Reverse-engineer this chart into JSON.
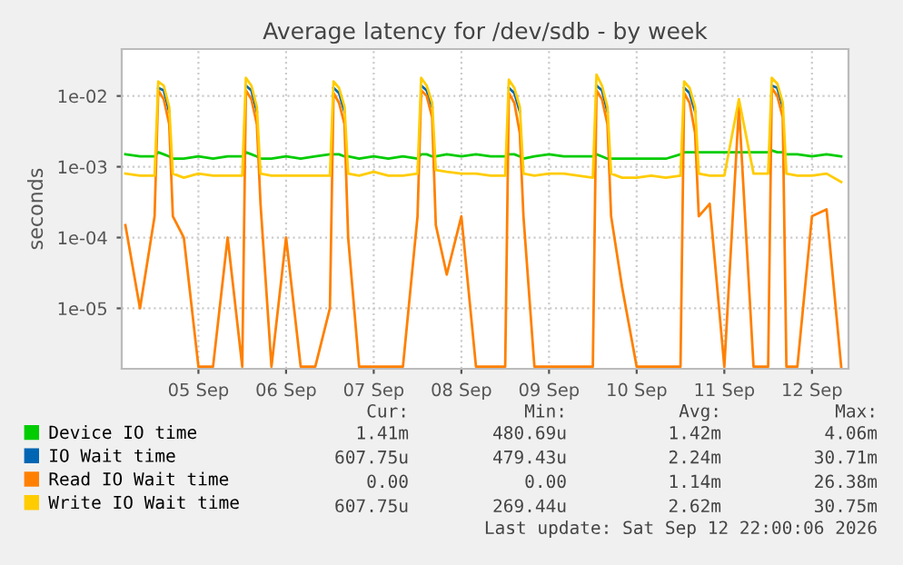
{
  "chart_data": {
    "type": "line",
    "title": "Average latency for /dev/sdb - by week",
    "ylabel": "seconds",
    "log": "y",
    "grid": true,
    "legend": "bottom",
    "marker": "none",
    "line_style": "solid",
    "ylim": [
      1.4e-06,
      0.046
    ],
    "yticks": [
      {
        "value": 1e-05,
        "label": "1e-05"
      },
      {
        "value": 0.0001,
        "label": "1e-04"
      },
      {
        "value": 0.001,
        "label": "1e-03"
      },
      {
        "value": 0.01,
        "label": "1e-02"
      }
    ],
    "xlim": [
      "2026-09-04T15:00",
      "2026-09-12T22:00"
    ],
    "xticks": [
      {
        "value": "2026-09-05T12:00",
        "label": "05 Sep"
      },
      {
        "value": "2026-09-06T12:00",
        "label": "06 Sep"
      },
      {
        "value": "2026-09-07T12:00",
        "label": "07 Sep"
      },
      {
        "value": "2026-09-08T12:00",
        "label": "08 Sep"
      },
      {
        "value": "2026-09-09T12:00",
        "label": "09 Sep"
      },
      {
        "value": "2026-09-10T12:00",
        "label": "10 Sep"
      },
      {
        "value": "2026-09-11T12:00",
        "label": "11 Sep"
      },
      {
        "value": "2026-09-12T12:00",
        "label": "12 Sep"
      }
    ],
    "x": [
      "2026-09-04T16:00",
      "2026-09-04T20:00",
      "2026-09-05T00:00",
      "2026-09-05T01:00",
      "2026-09-05T02:30",
      "2026-09-05T04:00",
      "2026-09-05T05:00",
      "2026-09-05T08:00",
      "2026-09-05T12:00",
      "2026-09-05T16:00",
      "2026-09-05T20:00",
      "2026-09-06T00:00",
      "2026-09-06T01:00",
      "2026-09-06T02:30",
      "2026-09-06T04:00",
      "2026-09-06T05:00",
      "2026-09-06T08:00",
      "2026-09-06T12:00",
      "2026-09-06T16:00",
      "2026-09-06T20:00",
      "2026-09-07T00:00",
      "2026-09-07T01:00",
      "2026-09-07T02:30",
      "2026-09-07T04:00",
      "2026-09-07T05:00",
      "2026-09-07T08:00",
      "2026-09-07T12:00",
      "2026-09-07T16:00",
      "2026-09-07T20:00",
      "2026-09-08T00:00",
      "2026-09-08T01:00",
      "2026-09-08T02:30",
      "2026-09-08T04:00",
      "2026-09-08T05:00",
      "2026-09-08T08:00",
      "2026-09-08T12:00",
      "2026-09-08T16:00",
      "2026-09-08T20:00",
      "2026-09-09T00:00",
      "2026-09-09T01:00",
      "2026-09-09T02:30",
      "2026-09-09T04:00",
      "2026-09-09T05:00",
      "2026-09-09T08:00",
      "2026-09-09T12:00",
      "2026-09-09T16:00",
      "2026-09-09T20:00",
      "2026-09-10T00:00",
      "2026-09-10T01:00",
      "2026-09-10T02:30",
      "2026-09-10T04:00",
      "2026-09-10T05:00",
      "2026-09-10T08:00",
      "2026-09-10T12:00",
      "2026-09-10T16:00",
      "2026-09-10T20:00",
      "2026-09-11T00:00",
      "2026-09-11T01:00",
      "2026-09-11T02:30",
      "2026-09-11T04:00",
      "2026-09-11T05:00",
      "2026-09-11T08:00",
      "2026-09-11T12:00",
      "2026-09-11T16:00",
      "2026-09-11T20:00",
      "2026-09-12T00:00",
      "2026-09-12T01:00",
      "2026-09-12T02:30",
      "2026-09-12T04:00",
      "2026-09-12T05:00",
      "2026-09-12T08:00",
      "2026-09-12T12:00",
      "2026-09-12T16:00",
      "2026-09-12T20:00"
    ],
    "series": [
      {
        "name": "Device IO time",
        "color": "#00cc00",
        "values": [
          0.0015,
          0.0014,
          0.0014,
          0.0016,
          0.0015,
          0.0014,
          0.0013,
          0.0013,
          0.0014,
          0.0013,
          0.0014,
          0.0014,
          0.0016,
          0.0015,
          0.0014,
          0.0013,
          0.0013,
          0.0014,
          0.0013,
          0.0014,
          0.0015,
          0.0015,
          0.0015,
          0.0014,
          0.0014,
          0.0013,
          0.0014,
          0.0013,
          0.0014,
          0.0013,
          0.0015,
          0.0015,
          0.0014,
          0.0014,
          0.0015,
          0.0014,
          0.0015,
          0.0014,
          0.0014,
          0.0015,
          0.0015,
          0.0014,
          0.0013,
          0.0014,
          0.0015,
          0.0014,
          0.0014,
          0.0014,
          0.0015,
          0.0014,
          0.0013,
          0.0013,
          0.0013,
          0.0013,
          0.0013,
          0.0013,
          0.0015,
          0.0016,
          0.0016,
          0.0016,
          0.0016,
          0.0016,
          0.0016,
          0.0016,
          0.0016,
          0.0016,
          0.0017,
          0.0016,
          0.0016,
          0.0015,
          0.0015,
          0.0014,
          0.0015,
          0.0014
        ]
      },
      {
        "name": "IO Wait time",
        "color": "#0066b3",
        "values": [
          null,
          null,
          null,
          0.013,
          0.012,
          0.006,
          null,
          null,
          null,
          null,
          null,
          null,
          0.014,
          0.012,
          0.006,
          null,
          null,
          null,
          null,
          null,
          null,
          0.013,
          0.011,
          0.006,
          null,
          null,
          null,
          null,
          null,
          null,
          0.014,
          0.012,
          0.007,
          null,
          null,
          null,
          null,
          null,
          null,
          0.013,
          0.011,
          0.006,
          null,
          null,
          null,
          null,
          null,
          null,
          0.014,
          0.012,
          0.006,
          null,
          null,
          null,
          null,
          null,
          null,
          0.013,
          0.011,
          0.006,
          null,
          null,
          null,
          null,
          null,
          null,
          0.014,
          0.013,
          0.007,
          null,
          null,
          null,
          null,
          null
        ]
      },
      {
        "name": "Read IO Wait time",
        "color": "#ff8000",
        "values": [
          0.00015,
          1e-05,
          0.0002,
          0.012,
          0.009,
          0.004,
          0.0002,
          0.0001,
          1.5e-06,
          1.5e-06,
          0.0001,
          1.5e-06,
          0.012,
          0.009,
          0.004,
          0.0003,
          1.5e-06,
          0.0001,
          1.5e-06,
          1.5e-06,
          1e-05,
          0.011,
          0.008,
          0.004,
          0.0001,
          1.5e-06,
          1.5e-06,
          1.5e-06,
          1.5e-06,
          0.0002,
          0.012,
          0.01,
          0.005,
          0.00015,
          3e-05,
          0.0002,
          1.5e-06,
          1.5e-06,
          1.5e-06,
          0.011,
          0.008,
          0.003,
          0.0002,
          1.5e-06,
          1.5e-06,
          1.5e-06,
          1.5e-06,
          1.5e-06,
          0.012,
          0.009,
          0.004,
          0.0002,
          2e-05,
          1.5e-06,
          1.5e-06,
          1.5e-06,
          1.5e-06,
          0.011,
          0.008,
          0.003,
          0.0002,
          0.0003,
          1.5e-06,
          0.007,
          1.5e-06,
          1.5e-06,
          0.013,
          0.01,
          0.005,
          1.5e-06,
          1.5e-06,
          0.0002,
          0.00025,
          1.5e-06
        ]
      },
      {
        "name": "Write IO Wait time",
        "color": "#ffcc00",
        "values": [
          0.0008,
          0.00075,
          0.00075,
          0.016,
          0.014,
          0.007,
          0.0008,
          0.0007,
          0.0008,
          0.00075,
          0.00075,
          0.00075,
          0.018,
          0.014,
          0.007,
          0.0008,
          0.00075,
          0.00075,
          0.00075,
          0.00075,
          0.00075,
          0.016,
          0.013,
          0.007,
          0.0008,
          0.00075,
          0.00085,
          0.00075,
          0.00075,
          0.0008,
          0.018,
          0.014,
          0.008,
          0.0009,
          0.00085,
          0.0008,
          0.0008,
          0.00075,
          0.00075,
          0.017,
          0.013,
          0.007,
          0.0008,
          0.00075,
          0.0008,
          0.0008,
          0.00075,
          0.0007,
          0.02,
          0.014,
          0.007,
          0.0008,
          0.0007,
          0.0007,
          0.00075,
          0.0007,
          0.00075,
          0.016,
          0.013,
          0.007,
          0.0008,
          0.00075,
          0.00075,
          0.009,
          0.0008,
          0.0008,
          0.018,
          0.015,
          0.008,
          0.0008,
          0.00075,
          0.00075,
          0.0008,
          0.00061
        ]
      }
    ],
    "annotations": [
      "Cur:",
      "Min:",
      "Avg:",
      "Max:",
      "1.41m",
      "480.69u",
      "1.42m",
      "4.06m",
      "607.75u",
      "479.43u",
      "2.24m",
      "30.71m",
      "0.00",
      "0.00",
      "1.14m",
      "26.38m",
      "607.75u",
      "269.44u",
      "2.62m",
      "30.75m",
      "Last update: Sat Sep 12 22:00:06 2026"
    ]
  }
}
